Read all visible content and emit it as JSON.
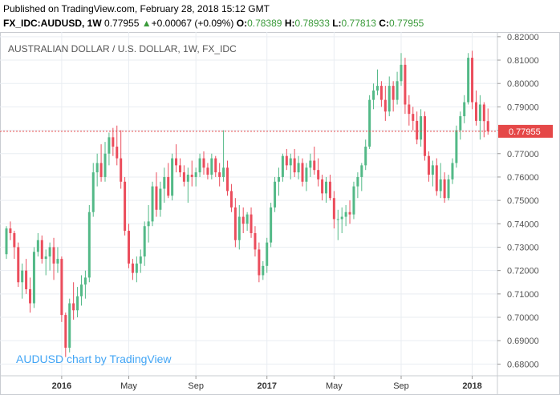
{
  "header": {
    "published": "Published on TradingView.com, February 28, 2018 15:12 GMT",
    "symbol": "FX_IDC:AUDUSD, 1W",
    "last": "0.77955",
    "change_arrow": "▲",
    "change": "+0.00067 (+0.09%)",
    "open_label": "O:",
    "open": "0.78389",
    "high_label": "H:",
    "high": "0.78933",
    "low_label": "L:",
    "low": "0.77813",
    "close_label": "C:",
    "close": "0.77955"
  },
  "chart_data": {
    "type": "candlestick",
    "title": "AUSTRALIAN DOLLAR / U.S. DOLLAR, 1W, FX_IDC",
    "watermark": "AUDUSD chart by TradingView",
    "last_price_label": "0.77955",
    "last_price": 0.77955,
    "ylim": [
      0.675,
      0.822
    ],
    "y_ticks": [
      0.68,
      0.69,
      0.7,
      0.71,
      0.72,
      0.73,
      0.74,
      0.75,
      0.76,
      0.77,
      0.78,
      0.79,
      0.8,
      0.81,
      0.82
    ],
    "y_tick_labels": [
      "0.68000",
      "0.69000",
      "0.70000",
      "0.71000",
      "0.72000",
      "0.73000",
      "0.74000",
      "0.75000",
      "0.76000",
      "0.77000",
      "0.78000",
      "0.79000",
      "0.80000",
      "0.81000",
      "0.82000"
    ],
    "x_ticks": [
      {
        "label": "2016",
        "index": 14,
        "bold": true
      },
      {
        "label": "May",
        "index": 31
      },
      {
        "label": "Sep",
        "index": 48
      },
      {
        "label": "2017",
        "index": 66,
        "bold": true
      },
      {
        "label": "May",
        "index": 83
      },
      {
        "label": "Sep",
        "index": 100
      },
      {
        "label": "2018",
        "index": 118,
        "bold": true
      }
    ],
    "colors": {
      "up": "#53b987",
      "down": "#eb4d5c",
      "last_line": "#e54848",
      "grid": "#e9edf2",
      "axis_text": "#555555"
    },
    "candles": [
      [
        0.727,
        0.739,
        0.725,
        0.738
      ],
      [
        0.738,
        0.741,
        0.733,
        0.736
      ],
      [
        0.736,
        0.737,
        0.725,
        0.73
      ],
      [
        0.73,
        0.732,
        0.713,
        0.715
      ],
      [
        0.715,
        0.723,
        0.708,
        0.72
      ],
      [
        0.72,
        0.725,
        0.71,
        0.712
      ],
      [
        0.712,
        0.717,
        0.702,
        0.706
      ],
      [
        0.706,
        0.73,
        0.704,
        0.728
      ],
      [
        0.728,
        0.736,
        0.726,
        0.733
      ],
      [
        0.733,
        0.735,
        0.723,
        0.725
      ],
      [
        0.725,
        0.729,
        0.718,
        0.726
      ],
      [
        0.726,
        0.732,
        0.72,
        0.73
      ],
      [
        0.73,
        0.734,
        0.716,
        0.723
      ],
      [
        0.723,
        0.73,
        0.719,
        0.725
      ],
      [
        0.725,
        0.726,
        0.698,
        0.701
      ],
      [
        0.701,
        0.702,
        0.683,
        0.687
      ],
      [
        0.687,
        0.708,
        0.685,
        0.706
      ],
      [
        0.706,
        0.715,
        0.699,
        0.703
      ],
      [
        0.703,
        0.713,
        0.7,
        0.709
      ],
      [
        0.709,
        0.718,
        0.705,
        0.714
      ],
      [
        0.714,
        0.72,
        0.708,
        0.717
      ],
      [
        0.717,
        0.748,
        0.715,
        0.745
      ],
      [
        0.745,
        0.766,
        0.743,
        0.762
      ],
      [
        0.762,
        0.77,
        0.756,
        0.766
      ],
      [
        0.766,
        0.774,
        0.758,
        0.76
      ],
      [
        0.76,
        0.775,
        0.758,
        0.77
      ],
      [
        0.77,
        0.779,
        0.765,
        0.777
      ],
      [
        0.777,
        0.781,
        0.769,
        0.773
      ],
      [
        0.773,
        0.782,
        0.765,
        0.768
      ],
      [
        0.768,
        0.78,
        0.755,
        0.758
      ],
      [
        0.758,
        0.76,
        0.735,
        0.737
      ],
      [
        0.737,
        0.74,
        0.721,
        0.723
      ],
      [
        0.723,
        0.725,
        0.716,
        0.719
      ],
      [
        0.719,
        0.726,
        0.715,
        0.723
      ],
      [
        0.723,
        0.729,
        0.719,
        0.726
      ],
      [
        0.726,
        0.741,
        0.722,
        0.739
      ],
      [
        0.739,
        0.748,
        0.732,
        0.741
      ],
      [
        0.741,
        0.758,
        0.739,
        0.756
      ],
      [
        0.756,
        0.762,
        0.743,
        0.746
      ],
      [
        0.746,
        0.758,
        0.743,
        0.755
      ],
      [
        0.755,
        0.764,
        0.749,
        0.76
      ],
      [
        0.76,
        0.766,
        0.751,
        0.752
      ],
      [
        0.752,
        0.77,
        0.75,
        0.768
      ],
      [
        0.768,
        0.774,
        0.762,
        0.765
      ],
      [
        0.765,
        0.768,
        0.76,
        0.762
      ],
      [
        0.762,
        0.765,
        0.756,
        0.758
      ],
      [
        0.758,
        0.764,
        0.749,
        0.761
      ],
      [
        0.761,
        0.767,
        0.756,
        0.76
      ],
      [
        0.76,
        0.764,
        0.756,
        0.762
      ],
      [
        0.762,
        0.77,
        0.76,
        0.768
      ],
      [
        0.768,
        0.771,
        0.761,
        0.764
      ],
      [
        0.764,
        0.766,
        0.759,
        0.761
      ],
      [
        0.761,
        0.77,
        0.759,
        0.768
      ],
      [
        0.768,
        0.769,
        0.76,
        0.762
      ],
      [
        0.762,
        0.766,
        0.756,
        0.76
      ],
      [
        0.76,
        0.78,
        0.758,
        0.764
      ],
      [
        0.764,
        0.767,
        0.752,
        0.754
      ],
      [
        0.754,
        0.757,
        0.745,
        0.747
      ],
      [
        0.747,
        0.751,
        0.73,
        0.733
      ],
      [
        0.733,
        0.748,
        0.729,
        0.743
      ],
      [
        0.743,
        0.747,
        0.736,
        0.74
      ],
      [
        0.74,
        0.745,
        0.737,
        0.744
      ],
      [
        0.744,
        0.747,
        0.734,
        0.736
      ],
      [
        0.736,
        0.739,
        0.726,
        0.729
      ],
      [
        0.729,
        0.732,
        0.715,
        0.718
      ],
      [
        0.718,
        0.724,
        0.716,
        0.722
      ],
      [
        0.722,
        0.734,
        0.719,
        0.732
      ],
      [
        0.732,
        0.749,
        0.73,
        0.747
      ],
      [
        0.747,
        0.76,
        0.745,
        0.758
      ],
      [
        0.758,
        0.764,
        0.752,
        0.76
      ],
      [
        0.76,
        0.77,
        0.758,
        0.769
      ],
      [
        0.769,
        0.772,
        0.763,
        0.765
      ],
      [
        0.765,
        0.77,
        0.759,
        0.768
      ],
      [
        0.768,
        0.772,
        0.76,
        0.762
      ],
      [
        0.762,
        0.769,
        0.759,
        0.766
      ],
      [
        0.766,
        0.768,
        0.756,
        0.758
      ],
      [
        0.758,
        0.766,
        0.754,
        0.764
      ],
      [
        0.764,
        0.77,
        0.76,
        0.767
      ],
      [
        0.767,
        0.773,
        0.761,
        0.763
      ],
      [
        0.763,
        0.768,
        0.756,
        0.759
      ],
      [
        0.759,
        0.761,
        0.75,
        0.753
      ],
      [
        0.753,
        0.76,
        0.749,
        0.758
      ],
      [
        0.758,
        0.761,
        0.75,
        0.751
      ],
      [
        0.751,
        0.754,
        0.738,
        0.742
      ],
      [
        0.742,
        0.746,
        0.733,
        0.742
      ],
      [
        0.742,
        0.747,
        0.736,
        0.743
      ],
      [
        0.743,
        0.748,
        0.739,
        0.745
      ],
      [
        0.745,
        0.75,
        0.74,
        0.744
      ],
      [
        0.744,
        0.758,
        0.742,
        0.756
      ],
      [
        0.756,
        0.762,
        0.751,
        0.76
      ],
      [
        0.76,
        0.766,
        0.754,
        0.765
      ],
      [
        0.765,
        0.776,
        0.763,
        0.773
      ],
      [
        0.773,
        0.795,
        0.772,
        0.793
      ],
      [
        0.793,
        0.8,
        0.789,
        0.797
      ],
      [
        0.797,
        0.806,
        0.795,
        0.799
      ],
      [
        0.799,
        0.801,
        0.79,
        0.793
      ],
      [
        0.793,
        0.799,
        0.784,
        0.788
      ],
      [
        0.788,
        0.803,
        0.786,
        0.799
      ],
      [
        0.799,
        0.801,
        0.788,
        0.793
      ],
      [
        0.793,
        0.805,
        0.791,
        0.801
      ],
      [
        0.801,
        0.813,
        0.799,
        0.808
      ],
      [
        0.808,
        0.811,
        0.787,
        0.791
      ],
      [
        0.791,
        0.795,
        0.782,
        0.787
      ],
      [
        0.787,
        0.79,
        0.78,
        0.784
      ],
      [
        0.784,
        0.788,
        0.774,
        0.776
      ],
      [
        0.776,
        0.789,
        0.773,
        0.786
      ],
      [
        0.786,
        0.788,
        0.767,
        0.769
      ],
      [
        0.769,
        0.771,
        0.758,
        0.761
      ],
      [
        0.761,
        0.767,
        0.756,
        0.765
      ],
      [
        0.765,
        0.768,
        0.752,
        0.754
      ],
      [
        0.754,
        0.766,
        0.751,
        0.759
      ],
      [
        0.759,
        0.762,
        0.749,
        0.751
      ],
      [
        0.751,
        0.761,
        0.75,
        0.759
      ],
      [
        0.759,
        0.768,
        0.757,
        0.766
      ],
      [
        0.766,
        0.782,
        0.764,
        0.78
      ],
      [
        0.78,
        0.788,
        0.776,
        0.786
      ],
      [
        0.786,
        0.795,
        0.783,
        0.792
      ],
      [
        0.792,
        0.813,
        0.791,
        0.811
      ],
      [
        0.811,
        0.814,
        0.789,
        0.792
      ],
      [
        0.792,
        0.797,
        0.782,
        0.784
      ],
      [
        0.784,
        0.795,
        0.776,
        0.791
      ],
      [
        0.791,
        0.792,
        0.777,
        0.7839
      ],
      [
        0.7839,
        0.7893,
        0.7781,
        0.77955
      ]
    ]
  }
}
